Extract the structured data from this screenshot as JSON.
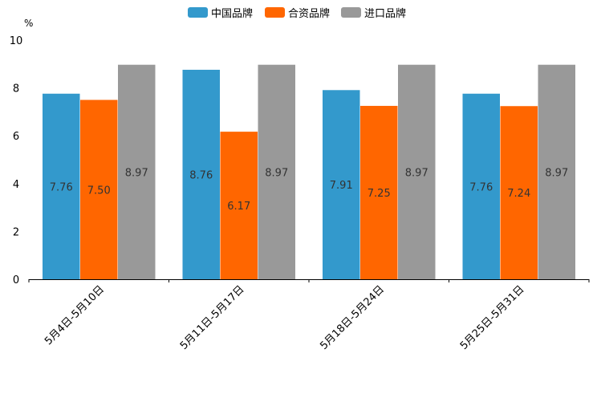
{
  "chart_data": {
    "type": "bar",
    "unit": "%",
    "categories": [
      "5月4日-5月10日",
      "5月11日-5月17日",
      "5月18日-5月24日",
      "5月25日-5月31日"
    ],
    "series": [
      {
        "name": "中国品牌",
        "color": "#3399cc",
        "values": [
          7.76,
          8.76,
          7.91,
          7.76
        ],
        "labels": [
          "7.76",
          "8.76",
          "7.91",
          "7.76"
        ]
      },
      {
        "name": "合资品牌",
        "color": "#ff6600",
        "values": [
          7.5,
          6.17,
          7.25,
          7.24
        ],
        "labels": [
          "7.50",
          "6.17",
          "7.25",
          "7.24"
        ]
      },
      {
        "name": "进口品牌",
        "color": "#999999",
        "values": [
          8.97,
          8.97,
          8.97,
          8.97
        ],
        "labels": [
          "8.97",
          "8.97",
          "8.97",
          "8.97"
        ]
      }
    ],
    "ylim": [
      0,
      10
    ],
    "yticks": [
      "0",
      "2",
      "4",
      "6",
      "8",
      "10"
    ],
    "grid": false,
    "legend_position": "top-center"
  }
}
